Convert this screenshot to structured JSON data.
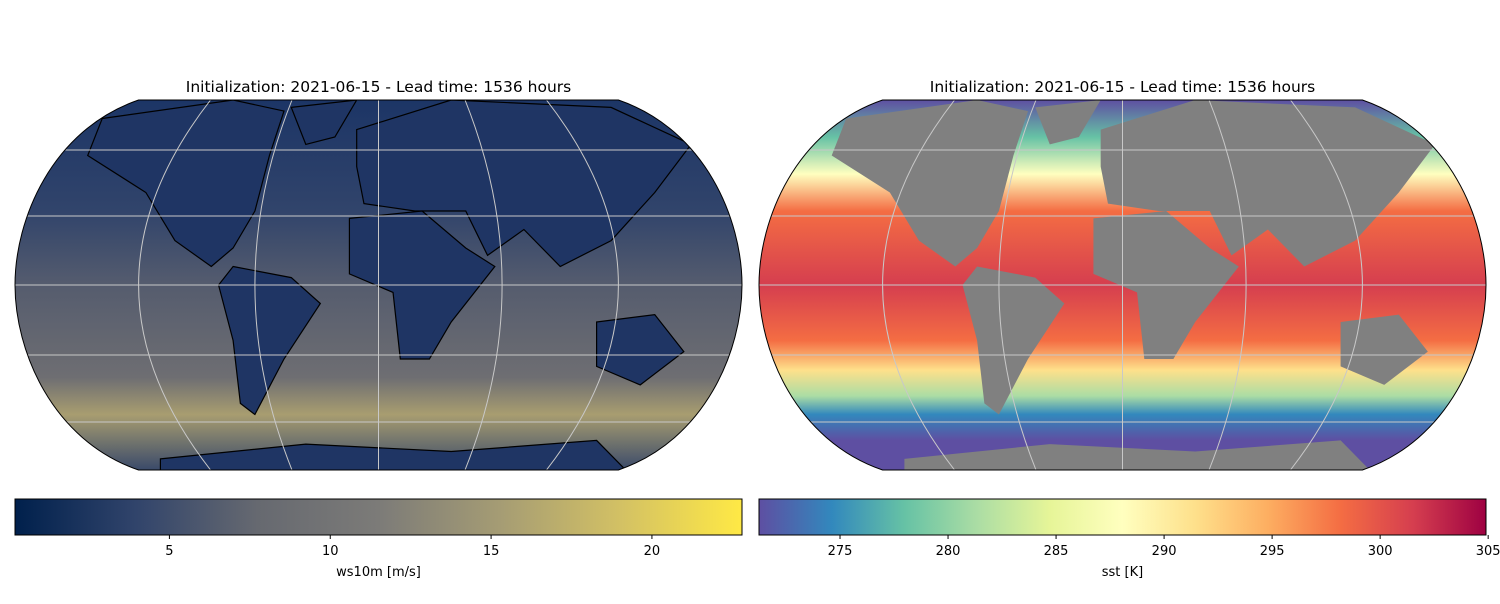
{
  "panels": [
    {
      "title": "Initialization: 2021-06-15 - Lead time: 1536 hours",
      "colorbar": {
        "label": "ws10m [m/s]",
        "lim": [
          0.2,
          22.8
        ],
        "ticks": [
          5,
          10,
          15,
          20
        ],
        "colormap": [
          "#00204c",
          "#31446b",
          "#666970",
          "#7c7b78",
          "#a59c74",
          "#d3c164",
          "#ffe945"
        ]
      }
    },
    {
      "title": "Initialization: 2021-06-15 - Lead time: 1536 hours",
      "colorbar": {
        "label": "sst [K]",
        "lim": [
          271.25,
          304.9
        ],
        "ticks": [
          275,
          280,
          285,
          290,
          295,
          300,
          305
        ],
        "colormap": [
          "#5e4fa2",
          "#3288bd",
          "#66c2a5",
          "#abdda4",
          "#e6f598",
          "#ffffbf",
          "#fee08b",
          "#fdae61",
          "#f46d43",
          "#d53e4f",
          "#9e0142"
        ]
      }
    }
  ]
}
